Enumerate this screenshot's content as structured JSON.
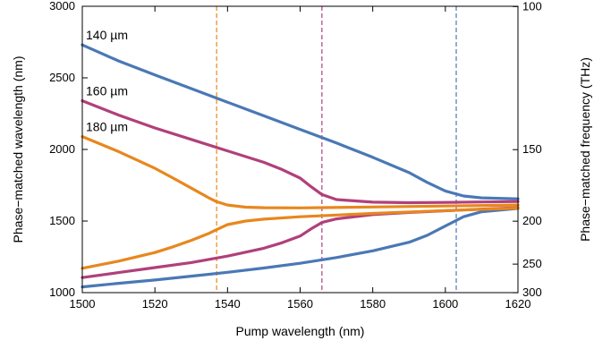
{
  "chart_data": {
    "type": "line",
    "title": "",
    "xlabel": "Pump wavelength (nm)",
    "ylabel": "Phase−matched wavelength (nm)",
    "y2label": "Phase−matched frequency (THz)",
    "xlim": [
      1500,
      1620
    ],
    "ylim": [
      1000,
      3000
    ],
    "xticks": [
      "1500",
      "1520",
      "1540",
      "1560",
      "1580",
      "1600",
      "1620"
    ],
    "yticks": [
      "1000",
      "1500",
      "2000",
      "2500",
      "3000"
    ],
    "y2ticks": [
      {
        "label": "100",
        "freq_thz": 100
      },
      {
        "label": "150",
        "freq_thz": 150
      },
      {
        "label": "200",
        "freq_thz": 200
      },
      {
        "label": "250",
        "freq_thz": 250
      },
      {
        "label": "300",
        "freq_thz": 300
      }
    ],
    "grid": false,
    "vlines": [
      {
        "x": 1537,
        "color": "#e8871e"
      },
      {
        "x": 1566,
        "color": "#b0407a"
      },
      {
        "x": 1603,
        "color": "#4a78b5"
      }
    ],
    "series": [
      {
        "name": "140 µm",
        "color": "#4a78b5",
        "x": [
          1500,
          1510,
          1520,
          1530,
          1540,
          1550,
          1560,
          1570,
          1580,
          1590,
          1595,
          1600,
          1605,
          1610,
          1620
        ],
        "upper": [
          2730,
          2618,
          2520,
          2425,
          2330,
          2235,
          2140,
          2045,
          1945,
          1838,
          1770,
          1710,
          1675,
          1662,
          1655
        ],
        "lower": [
          1040,
          1065,
          1088,
          1115,
          1142,
          1172,
          1205,
          1245,
          1292,
          1352,
          1400,
          1465,
          1530,
          1565,
          1588
        ]
      },
      {
        "name": "160 µm",
        "color": "#b0407a",
        "x": [
          1500,
          1510,
          1520,
          1530,
          1540,
          1550,
          1555,
          1560,
          1563,
          1566,
          1570,
          1580,
          1590,
          1600,
          1610,
          1620
        ],
        "upper": [
          2340,
          2240,
          2150,
          2070,
          1990,
          1910,
          1860,
          1800,
          1740,
          1685,
          1650,
          1632,
          1628,
          1630,
          1633,
          1636
        ],
        "lower": [
          1105,
          1140,
          1175,
          1210,
          1255,
          1310,
          1348,
          1395,
          1445,
          1490,
          1515,
          1545,
          1560,
          1572,
          1583,
          1593
        ]
      },
      {
        "name": "180 µm",
        "color": "#e8871e",
        "x": [
          1500,
          1510,
          1520,
          1525,
          1530,
          1535,
          1537,
          1540,
          1545,
          1550,
          1560,
          1580,
          1600,
          1620
        ],
        "upper": [
          2090,
          1985,
          1868,
          1800,
          1730,
          1660,
          1635,
          1612,
          1597,
          1593,
          1592,
          1598,
          1605,
          1612
        ],
        "lower": [
          1170,
          1220,
          1280,
          1320,
          1365,
          1415,
          1440,
          1475,
          1500,
          1513,
          1530,
          1553,
          1573,
          1590
        ]
      }
    ]
  }
}
